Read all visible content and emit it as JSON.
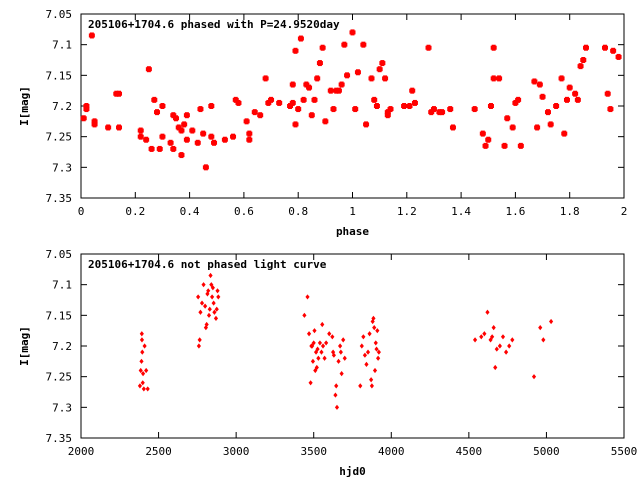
{
  "chart_data": [
    {
      "type": "scatter",
      "title": "205106+1704.6 phased with P=24.9520day",
      "xlabel": "phase",
      "ylabel": "I[mag]",
      "xlim": [
        0,
        2
      ],
      "ylim": [
        7.35,
        7.05
      ],
      "y_inverted": true,
      "x_ticks": [
        "0",
        "0.2",
        "0.4",
        "0.6",
        "0.8",
        "1",
        "1.2",
        "1.4",
        "1.6",
        "1.8",
        "2"
      ],
      "y_ticks": [
        "7.05",
        "7.1",
        "7.15",
        "7.2",
        "7.25",
        "7.3",
        "7.35"
      ],
      "marker": "cross",
      "color": "#ff0000",
      "points": [
        [
          0.01,
          7.22
        ],
        [
          0.02,
          7.2
        ],
        [
          0.02,
          7.205
        ],
        [
          0.04,
          7.085
        ],
        [
          0.05,
          7.225
        ],
        [
          0.05,
          7.23
        ],
        [
          0.1,
          7.235
        ],
        [
          0.13,
          7.18
        ],
        [
          0.14,
          7.18
        ],
        [
          0.14,
          7.235
        ],
        [
          0.22,
          7.24
        ],
        [
          0.22,
          7.25
        ],
        [
          0.24,
          7.255
        ],
        [
          0.25,
          7.14
        ],
        [
          0.26,
          7.27
        ],
        [
          0.27,
          7.19
        ],
        [
          0.28,
          7.21
        ],
        [
          0.29,
          7.27
        ],
        [
          0.3,
          7.25
        ],
        [
          0.3,
          7.2
        ],
        [
          0.33,
          7.26
        ],
        [
          0.34,
          7.27
        ],
        [
          0.34,
          7.215
        ],
        [
          0.35,
          7.22
        ],
        [
          0.36,
          7.235
        ],
        [
          0.37,
          7.24
        ],
        [
          0.37,
          7.28
        ],
        [
          0.38,
          7.23
        ],
        [
          0.39,
          7.215
        ],
        [
          0.39,
          7.255
        ],
        [
          0.41,
          7.24
        ],
        [
          0.43,
          7.26
        ],
        [
          0.44,
          7.205
        ],
        [
          0.45,
          7.245
        ],
        [
          0.46,
          7.3
        ],
        [
          0.48,
          7.2
        ],
        [
          0.48,
          7.25
        ],
        [
          0.49,
          7.26
        ],
        [
          0.53,
          7.255
        ],
        [
          0.56,
          7.25
        ],
        [
          0.57,
          7.19
        ],
        [
          0.58,
          7.195
        ],
        [
          0.61,
          7.225
        ],
        [
          0.62,
          7.245
        ],
        [
          0.62,
          7.255
        ],
        [
          0.64,
          7.21
        ],
        [
          0.66,
          7.215
        ],
        [
          0.68,
          7.155
        ],
        [
          0.69,
          7.195
        ],
        [
          0.7,
          7.19
        ],
        [
          0.73,
          7.195
        ],
        [
          0.77,
          7.2
        ],
        [
          0.78,
          7.195
        ],
        [
          0.78,
          7.165
        ],
        [
          0.79,
          7.23
        ],
        [
          0.79,
          7.11
        ],
        [
          0.8,
          7.205
        ],
        [
          0.81,
          7.09
        ],
        [
          0.82,
          7.19
        ],
        [
          0.83,
          7.165
        ],
        [
          0.84,
          7.17
        ],
        [
          0.85,
          7.215
        ],
        [
          0.86,
          7.19
        ],
        [
          0.87,
          7.155
        ],
        [
          0.88,
          7.13
        ],
        [
          0.89,
          7.105
        ],
        [
          0.9,
          7.225
        ],
        [
          0.92,
          7.175
        ],
        [
          0.93,
          7.205
        ],
        [
          0.94,
          7.175
        ],
        [
          0.95,
          7.175
        ],
        [
          0.96,
          7.165
        ],
        [
          0.97,
          7.1
        ],
        [
          0.98,
          7.15
        ],
        [
          1.0,
          7.08
        ],
        [
          1.01,
          7.205
        ],
        [
          1.02,
          7.145
        ],
        [
          1.04,
          7.1
        ],
        [
          1.05,
          7.23
        ],
        [
          1.07,
          7.155
        ],
        [
          1.08,
          7.19
        ],
        [
          1.09,
          7.2
        ],
        [
          1.1,
          7.14
        ],
        [
          1.11,
          7.13
        ],
        [
          1.12,
          7.155
        ],
        [
          1.13,
          7.21
        ],
        [
          1.13,
          7.215
        ],
        [
          1.14,
          7.205
        ],
        [
          1.19,
          7.2
        ],
        [
          1.21,
          7.2
        ],
        [
          1.22,
          7.175
        ],
        [
          1.23,
          7.195
        ],
        [
          1.28,
          7.105
        ],
        [
          1.29,
          7.21
        ],
        [
          1.3,
          7.205
        ],
        [
          1.32,
          7.21
        ],
        [
          1.33,
          7.21
        ],
        [
          1.36,
          7.205
        ],
        [
          1.37,
          7.235
        ],
        [
          1.45,
          7.205
        ],
        [
          1.48,
          7.245
        ],
        [
          1.49,
          7.265
        ],
        [
          1.5,
          7.255
        ],
        [
          1.51,
          7.2
        ],
        [
          1.52,
          7.105
        ],
        [
          1.52,
          7.155
        ],
        [
          1.54,
          7.155
        ],
        [
          1.56,
          7.265
        ],
        [
          1.57,
          7.22
        ],
        [
          1.59,
          7.235
        ],
        [
          1.6,
          7.195
        ],
        [
          1.61,
          7.19
        ],
        [
          1.62,
          7.265
        ],
        [
          1.67,
          7.16
        ],
        [
          1.68,
          7.235
        ],
        [
          1.69,
          7.165
        ],
        [
          1.7,
          7.185
        ],
        [
          1.72,
          7.21
        ],
        [
          1.73,
          7.23
        ],
        [
          1.75,
          7.2
        ],
        [
          1.77,
          7.155
        ],
        [
          1.78,
          7.245
        ],
        [
          1.79,
          7.19
        ],
        [
          1.8,
          7.17
        ],
        [
          1.82,
          7.18
        ],
        [
          1.83,
          7.19
        ],
        [
          1.84,
          7.135
        ],
        [
          1.85,
          7.125
        ],
        [
          1.86,
          7.105
        ],
        [
          1.93,
          7.105
        ],
        [
          1.94,
          7.18
        ],
        [
          1.95,
          7.205
        ],
        [
          1.96,
          7.11
        ],
        [
          1.98,
          7.12
        ]
      ]
    },
    {
      "type": "scatter",
      "title": "205106+1704.6 not phased light curve",
      "xlabel": "hjd0",
      "ylabel": "I[mag]",
      "xlim": [
        2000,
        5500
      ],
      "ylim": [
        7.35,
        7.05
      ],
      "y_inverted": true,
      "x_ticks": [
        "2000",
        "2500",
        "3000",
        "3500",
        "4000",
        "4500",
        "5000",
        "5500"
      ],
      "y_ticks": [
        "7.05",
        "7.1",
        "7.15",
        "7.2",
        "7.25",
        "7.3",
        "7.35"
      ],
      "marker": "diamond",
      "color": "#ff0000",
      "points": [
        [
          2380,
          7.265
        ],
        [
          2385,
          7.24
        ],
        [
          2390,
          7.225
        ],
        [
          2392,
          7.18
        ],
        [
          2393,
          7.19
        ],
        [
          2395,
          7.21
        ],
        [
          2398,
          7.26
        ],
        [
          2400,
          7.245
        ],
        [
          2405,
          7.27
        ],
        [
          2410,
          7.2
        ],
        [
          2420,
          7.24
        ],
        [
          2430,
          7.27
        ],
        [
          2755,
          7.12
        ],
        [
          2760,
          7.2
        ],
        [
          2765,
          7.19
        ],
        [
          2770,
          7.145
        ],
        [
          2780,
          7.13
        ],
        [
          2790,
          7.1
        ],
        [
          2800,
          7.135
        ],
        [
          2805,
          7.17
        ],
        [
          2810,
          7.165
        ],
        [
          2815,
          7.115
        ],
        [
          2820,
          7.11
        ],
        [
          2825,
          7.15
        ],
        [
          2830,
          7.14
        ],
        [
          2835,
          7.085
        ],
        [
          2840,
          7.1
        ],
        [
          2845,
          7.12
        ],
        [
          2850,
          7.105
        ],
        [
          2855,
          7.13
        ],
        [
          2860,
          7.145
        ],
        [
          2870,
          7.155
        ],
        [
          2875,
          7.14
        ],
        [
          2880,
          7.11
        ],
        [
          2885,
          7.12
        ],
        [
          3440,
          7.15
        ],
        [
          3460,
          7.12
        ],
        [
          3470,
          7.18
        ],
        [
          3480,
          7.26
        ],
        [
          3485,
          7.2
        ],
        [
          3490,
          7.2
        ],
        [
          3495,
          7.225
        ],
        [
          3500,
          7.195
        ],
        [
          3505,
          7.175
        ],
        [
          3510,
          7.24
        ],
        [
          3515,
          7.21
        ],
        [
          3520,
          7.235
        ],
        [
          3525,
          7.205
        ],
        [
          3530,
          7.22
        ],
        [
          3540,
          7.195
        ],
        [
          3550,
          7.21
        ],
        [
          3555,
          7.165
        ],
        [
          3560,
          7.2
        ],
        [
          3570,
          7.22
        ],
        [
          3580,
          7.195
        ],
        [
          3600,
          7.18
        ],
        [
          3620,
          7.185
        ],
        [
          3625,
          7.21
        ],
        [
          3630,
          7.215
        ],
        [
          3640,
          7.28
        ],
        [
          3645,
          7.265
        ],
        [
          3650,
          7.3
        ],
        [
          3660,
          7.225
        ],
        [
          3670,
          7.2
        ],
        [
          3675,
          7.21
        ],
        [
          3680,
          7.245
        ],
        [
          3690,
          7.19
        ],
        [
          3700,
          7.22
        ],
        [
          3800,
          7.265
        ],
        [
          3810,
          7.2
        ],
        [
          3820,
          7.185
        ],
        [
          3830,
          7.215
        ],
        [
          3840,
          7.23
        ],
        [
          3850,
          7.21
        ],
        [
          3860,
          7.18
        ],
        [
          3870,
          7.255
        ],
        [
          3875,
          7.265
        ],
        [
          3880,
          7.16
        ],
        [
          3885,
          7.155
        ],
        [
          3890,
          7.17
        ],
        [
          3895,
          7.24
        ],
        [
          3900,
          7.195
        ],
        [
          3905,
          7.205
        ],
        [
          3910,
          7.175
        ],
        [
          3915,
          7.22
        ],
        [
          3920,
          7.21
        ],
        [
          4540,
          7.19
        ],
        [
          4580,
          7.185
        ],
        [
          4600,
          7.18
        ],
        [
          4620,
          7.145
        ],
        [
          4640,
          7.19
        ],
        [
          4650,
          7.185
        ],
        [
          4660,
          7.17
        ],
        [
          4670,
          7.235
        ],
        [
          4680,
          7.205
        ],
        [
          4700,
          7.2
        ],
        [
          4720,
          7.185
        ],
        [
          4740,
          7.21
        ],
        [
          4760,
          7.2
        ],
        [
          4780,
          7.19
        ],
        [
          4920,
          7.25
        ],
        [
          4960,
          7.17
        ],
        [
          4980,
          7.19
        ],
        [
          5030,
          7.16
        ]
      ]
    }
  ]
}
